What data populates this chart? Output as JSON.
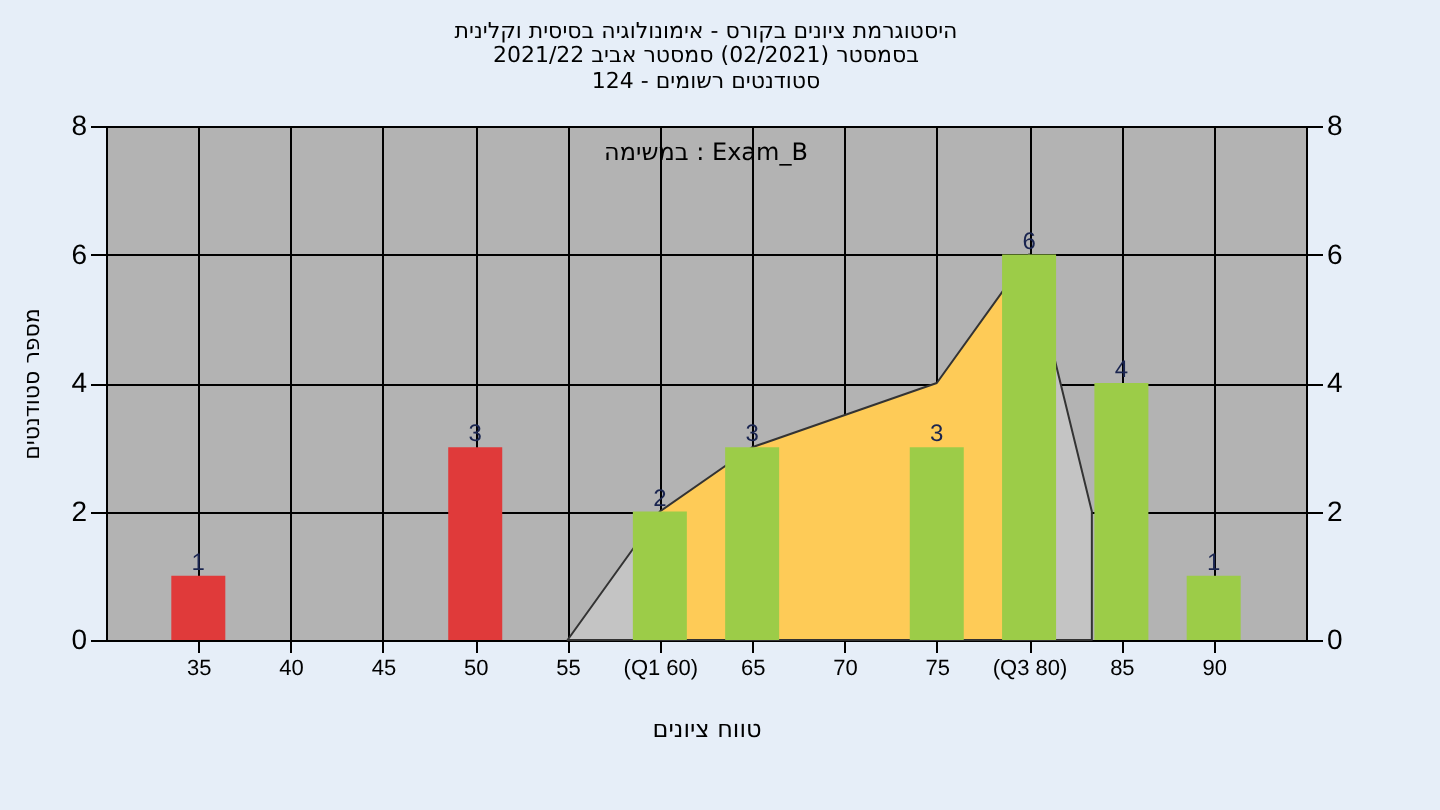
{
  "chart_data": {
    "type": "bar",
    "title": "היסטוגרמת ציונים בקורס - אימונולוגיה בסיסית וקלינית",
    "subtitle": "בסמסטר  (02/2021)  סמסטר אביב 2021/22\nסטודנטים רשומים - 124",
    "xlabel": "טווח ציונים",
    "ylabel": "מספר סטודנטים",
    "annotations": [
      "במשימה : Exam_B"
    ],
    "series": [
      {
        "type": "area",
        "color": "#c4c4c4",
        "x": [
          55,
          60
        ],
        "values": [
          0,
          2
        ]
      },
      {
        "type": "area",
        "color": "#fecb57",
        "x": [
          60,
          65,
          75,
          80
        ],
        "values": [
          2,
          3,
          4,
          6
        ]
      },
      {
        "type": "area",
        "color": "#c4c4c4",
        "x": [
          80,
          83.4
        ],
        "values": [
          6,
          2
        ]
      },
      {
        "x": [
          35,
          50,
          60,
          65,
          75,
          80,
          85,
          90
        ],
        "values": [
          1,
          3,
          2,
          3,
          3,
          6,
          4,
          1
        ],
        "value_labels": [
          "1",
          "3",
          "2",
          "3",
          "3",
          "6",
          "4",
          "1"
        ],
        "colors": [
          "#e03a3a",
          "#e03a3a",
          "#9ccc48",
          "#9ccc48",
          "#9ccc48",
          "#9ccc48",
          "#9ccc48",
          "#9ccc48"
        ]
      }
    ],
    "xlim": [
      30,
      95
    ],
    "xticks": [
      35,
      40,
      45,
      50,
      55,
      {
        "value": 60,
        "label": "(Q1 60)"
      },
      65,
      70,
      75,
      {
        "value": 80,
        "label": "(Q3 80)"
      },
      85,
      90
    ],
    "ylim": [
      0,
      8
    ],
    "yticks": [
      0,
      2,
      4,
      6,
      8
    ],
    "y2lim": [
      0,
      8
    ],
    "y2ticks": [
      0,
      2,
      4,
      6,
      8
    ],
    "grid": true
  }
}
